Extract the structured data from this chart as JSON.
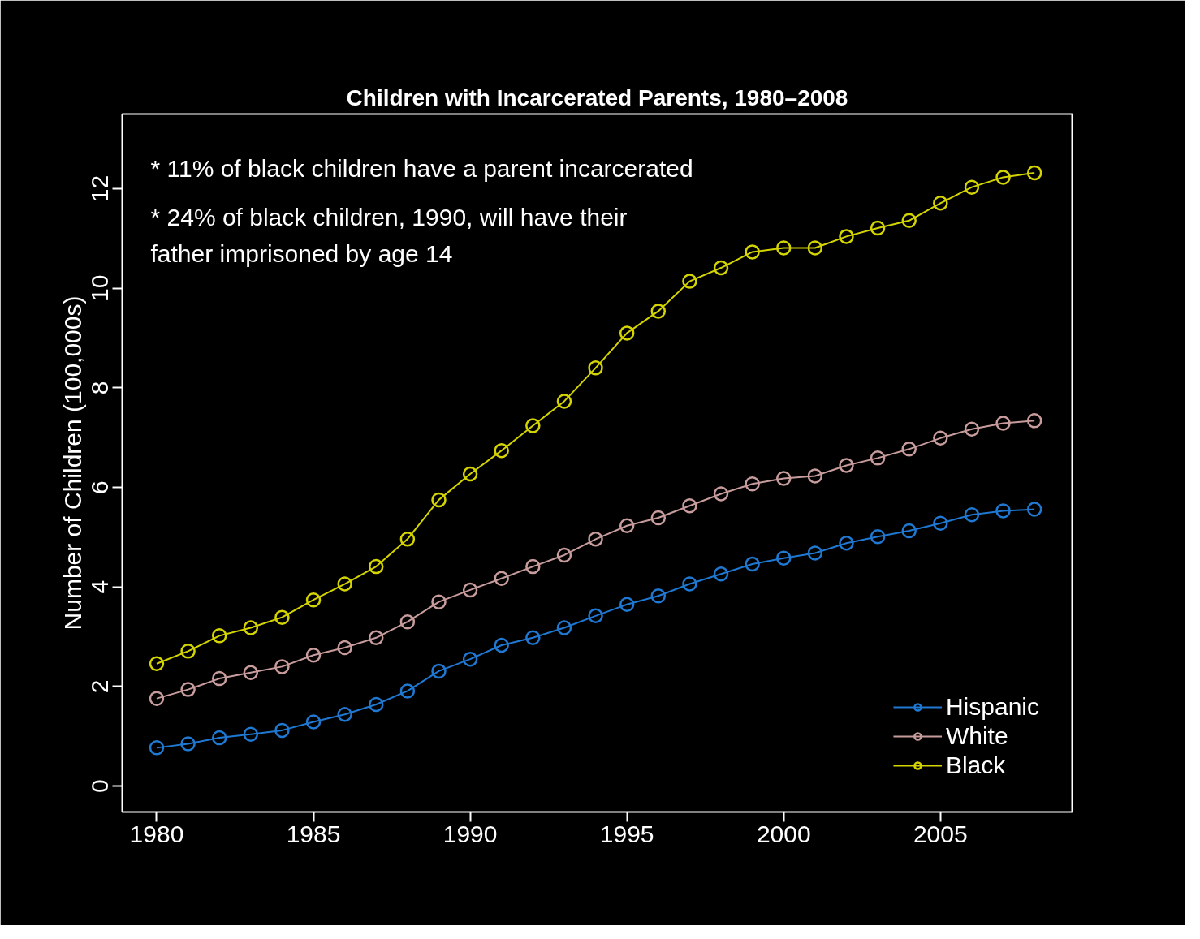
{
  "chart_data": {
    "type": "line",
    "title": "Children with Incarcerated Parents, 1980–2008",
    "ylabel": "Number of Children (100,000s)",
    "x": [
      1980,
      1981,
      1982,
      1983,
      1984,
      1985,
      1986,
      1987,
      1988,
      1989,
      1990,
      1991,
      1992,
      1993,
      1994,
      1995,
      1996,
      1997,
      1998,
      1999,
      2000,
      2001,
      2002,
      2003,
      2004,
      2005,
      2006,
      2007,
      2008
    ],
    "series": [
      {
        "name": "Hispanic",
        "color": "#1f78d1",
        "values": [
          0.77,
          0.85,
          0.97,
          1.04,
          1.12,
          1.29,
          1.44,
          1.64,
          1.91,
          2.31,
          2.55,
          2.83,
          2.98,
          3.18,
          3.42,
          3.65,
          3.82,
          4.06,
          4.26,
          4.46,
          4.58,
          4.68,
          4.88,
          5.01,
          5.13,
          5.28,
          5.45,
          5.53,
          5.56
        ]
      },
      {
        "name": "White",
        "color": "#c89c9c",
        "values": [
          1.76,
          1.94,
          2.16,
          2.28,
          2.4,
          2.63,
          2.78,
          2.98,
          3.3,
          3.7,
          3.94,
          4.17,
          4.41,
          4.64,
          4.96,
          5.23,
          5.39,
          5.63,
          5.87,
          6.07,
          6.18,
          6.23,
          6.44,
          6.59,
          6.77,
          6.99,
          7.17,
          7.29,
          7.34
        ]
      },
      {
        "name": "Black",
        "color": "#d4d400",
        "values": [
          2.46,
          2.71,
          3.02,
          3.18,
          3.39,
          3.74,
          4.06,
          4.41,
          4.96,
          5.75,
          6.27,
          6.74,
          7.24,
          7.73,
          8.4,
          9.1,
          9.54,
          10.14,
          10.41,
          10.73,
          10.81,
          10.81,
          11.04,
          11.21,
          11.36,
          11.71,
          12.03,
          12.23,
          12.32
        ]
      }
    ],
    "xlim": [
      1978.9,
      2009.2
    ],
    "xticks": [
      1980,
      1985,
      1990,
      1995,
      2000,
      2005
    ],
    "ylim": [
      -0.52,
      13.5
    ],
    "yticks": [
      0,
      2,
      4,
      6,
      8,
      10,
      12
    ],
    "annotations": [
      "* 11% of black children have a parent incarcerated",
      "* 24% of black children, 1990, will have their\n  father imprisoned by age 14"
    ],
    "legend": "bottom right",
    "grid": false,
    "marker": "circle",
    "line_style": "solid"
  }
}
